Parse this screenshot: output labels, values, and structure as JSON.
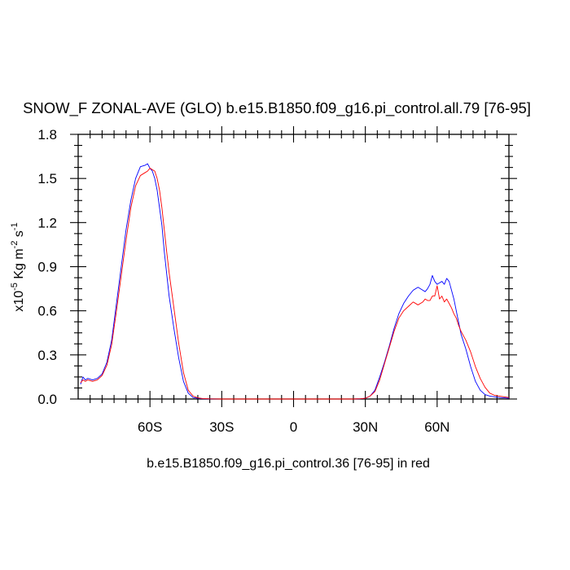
{
  "chart_data": {
    "type": "line",
    "title": "SNOW_F ZONAL-AVE (GLO) b.e15.B1850.f09_g16.pi_control.all.79 [76-95]",
    "xlabel": "b.e15.B1850.f09_g16.pi_control.36 [76-95] in red",
    "ylabel": {
      "prefix": "x10",
      "exp1": "-5",
      "mid": " Kg m",
      "exp2": "-2",
      "mid2": " s",
      "exp3": "-1"
    },
    "xlim": [
      -90,
      90
    ],
    "ylim": [
      0,
      1.8
    ],
    "xticks": [
      {
        "value": -60,
        "label": "60S"
      },
      {
        "value": -30,
        "label": "30S"
      },
      {
        "value": 0,
        "label": "0"
      },
      {
        "value": 30,
        "label": "30N"
      },
      {
        "value": 60,
        "label": "60N"
      }
    ],
    "yticks": [
      {
        "value": 0.0,
        "label": "0.0"
      },
      {
        "value": 0.3,
        "label": "0.3"
      },
      {
        "value": 0.6,
        "label": "0.6"
      },
      {
        "value": 0.9,
        "label": "0.9"
      },
      {
        "value": 1.2,
        "label": "1.2"
      },
      {
        "value": 1.5,
        "label": "1.5"
      },
      {
        "value": 1.8,
        "label": "1.8"
      }
    ],
    "grid": false,
    "series": [
      {
        "color": "#0000ff",
        "x": [
          -89,
          -88,
          -87,
          -86,
          -84,
          -82,
          -80,
          -78,
          -76,
          -74,
          -72,
          -70,
          -68,
          -66,
          -64,
          -62,
          -61,
          -60,
          -59,
          -58,
          -57,
          -56,
          -55,
          -54,
          -53,
          -52,
          -50,
          -48,
          -46,
          -44,
          -42,
          -40,
          -38,
          -35,
          -30,
          -20,
          -10,
          0,
          10,
          20,
          25,
          28,
          30,
          32,
          34,
          36,
          38,
          40,
          42,
          44,
          46,
          48,
          50,
          52,
          54,
          55,
          56,
          57,
          58,
          59,
          60,
          61,
          62,
          63,
          64,
          65,
          66,
          67,
          68,
          69,
          70,
          72,
          74,
          76,
          78,
          80,
          82,
          84,
          86,
          88,
          90
        ],
        "y": [
          0.1,
          0.15,
          0.13,
          0.14,
          0.13,
          0.14,
          0.17,
          0.25,
          0.4,
          0.65,
          0.9,
          1.15,
          1.35,
          1.5,
          1.58,
          1.59,
          1.6,
          1.57,
          1.55,
          1.5,
          1.42,
          1.3,
          1.18,
          1.0,
          0.85,
          0.7,
          0.48,
          0.28,
          0.12,
          0.04,
          0.01,
          0.005,
          0.002,
          0.001,
          0.0,
          0.0,
          0.0,
          0.0,
          0.0,
          0.0,
          0.0,
          0.002,
          0.005,
          0.02,
          0.06,
          0.15,
          0.25,
          0.36,
          0.48,
          0.58,
          0.65,
          0.7,
          0.74,
          0.76,
          0.74,
          0.73,
          0.75,
          0.78,
          0.84,
          0.8,
          0.78,
          0.79,
          0.8,
          0.78,
          0.82,
          0.8,
          0.74,
          0.68,
          0.6,
          0.52,
          0.44,
          0.34,
          0.22,
          0.12,
          0.06,
          0.03,
          0.02,
          0.015,
          0.01,
          0.008,
          0.005
        ]
      },
      {
        "color": "#ff0000",
        "x": [
          -89,
          -88,
          -87,
          -86,
          -84,
          -82,
          -80,
          -78,
          -76,
          -74,
          -72,
          -70,
          -68,
          -66,
          -64,
          -62,
          -61,
          -60,
          -59,
          -58,
          -57,
          -56,
          -55,
          -54,
          -53,
          -52,
          -50,
          -48,
          -46,
          -44,
          -42,
          -40,
          -38,
          -35,
          -30,
          -20,
          -10,
          0,
          10,
          20,
          25,
          28,
          30,
          32,
          34,
          36,
          38,
          40,
          42,
          44,
          46,
          48,
          50,
          52,
          54,
          55,
          56,
          57,
          58,
          59,
          60,
          61,
          62,
          63,
          64,
          65,
          66,
          67,
          68,
          69,
          70,
          72,
          74,
          76,
          78,
          80,
          82,
          84,
          86,
          88,
          90
        ],
        "y": [
          0.11,
          0.13,
          0.12,
          0.13,
          0.12,
          0.13,
          0.16,
          0.23,
          0.37,
          0.6,
          0.84,
          1.08,
          1.3,
          1.45,
          1.52,
          1.54,
          1.55,
          1.57,
          1.56,
          1.55,
          1.5,
          1.42,
          1.3,
          1.15,
          1.0,
          0.86,
          0.62,
          0.38,
          0.18,
          0.06,
          0.02,
          0.008,
          0.003,
          0.001,
          0.0,
          0.0,
          0.0,
          0.0,
          0.0,
          0.0,
          0.0,
          0.002,
          0.005,
          0.02,
          0.05,
          0.13,
          0.24,
          0.35,
          0.46,
          0.55,
          0.6,
          0.63,
          0.66,
          0.64,
          0.66,
          0.68,
          0.67,
          0.67,
          0.7,
          0.7,
          0.77,
          0.68,
          0.7,
          0.66,
          0.68,
          0.65,
          0.62,
          0.58,
          0.55,
          0.5,
          0.46,
          0.4,
          0.32,
          0.22,
          0.14,
          0.08,
          0.04,
          0.025,
          0.02,
          0.015,
          0.01
        ]
      }
    ]
  }
}
